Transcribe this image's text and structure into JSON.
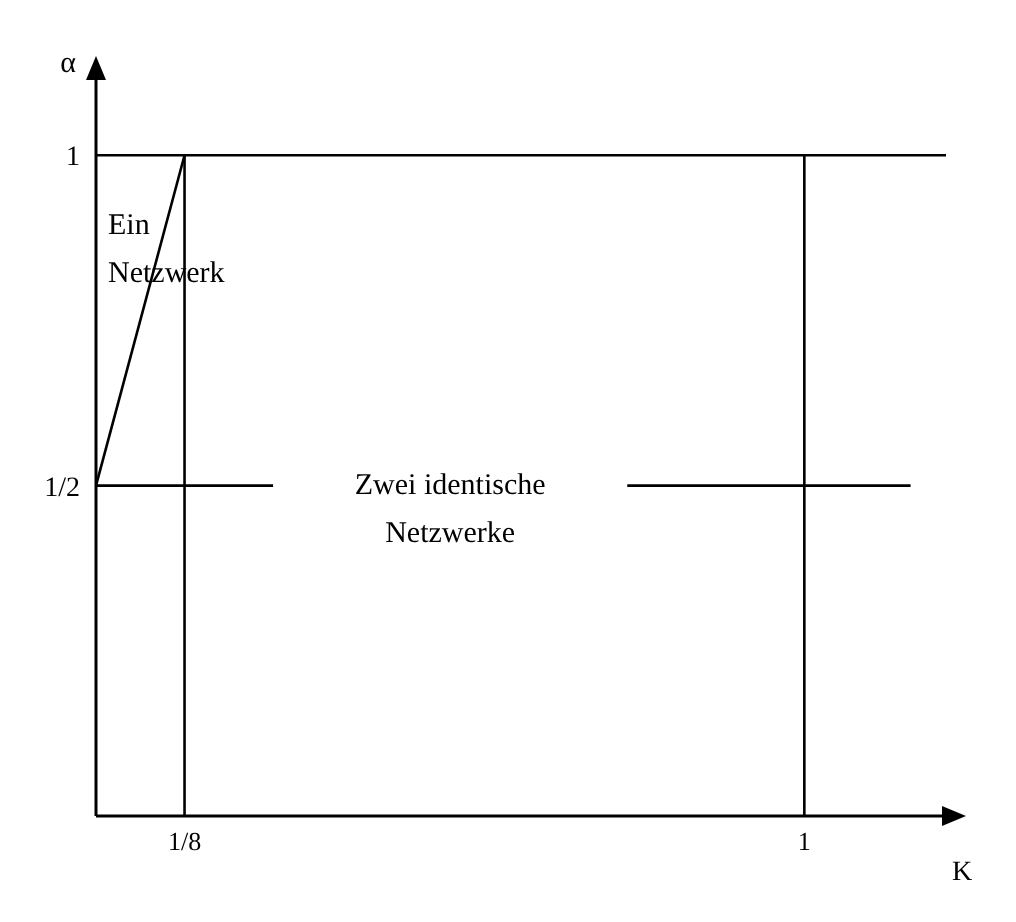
{
  "chart_data": {
    "type": "line",
    "xlabel": "K",
    "ylabel": "α",
    "xlim": [
      0,
      1.2
    ],
    "xticks": [
      {
        "value": 0.125,
        "label": "1/8"
      },
      1
    ],
    "ylim": [
      0,
      1.12
    ],
    "yticks": [
      {
        "value": 0.5,
        "label": "1/2"
      },
      1
    ],
    "grid": false,
    "marker": "none",
    "line_style": "solid",
    "series": [
      {
        "color": "#000000",
        "x": [
          0,
          0.125
        ],
        "values": [
          0.5,
          1
        ]
      },
      {
        "color": "#000000",
        "x": [
          0.125,
          0.125
        ],
        "values": [
          0,
          1
        ]
      },
      {
        "color": "#000000",
        "x": [
          1,
          1
        ],
        "values": [
          0,
          1
        ]
      },
      {
        "color": "#000000",
        "x": [
          0,
          1.2
        ],
        "values": [
          1,
          1
        ]
      },
      {
        "color": "#000000",
        "x": [
          0,
          0.25,
          0.5,
          0.75,
          1.15
        ],
        "values": [
          0.5,
          0.5,
          null,
          0.5,
          0.5
        ]
      }
    ],
    "annotations": [
      "Ein Netzwerk",
      "Zwei identische Netzwerke"
    ]
  }
}
